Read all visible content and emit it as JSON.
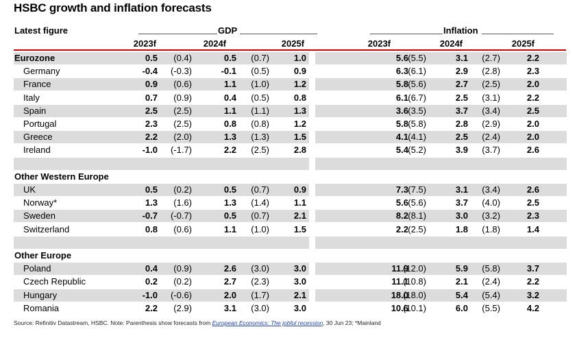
{
  "title": "HSBC growth and inflation forecasts",
  "top_label": "Latest figure",
  "groups": {
    "gdp": "GDP",
    "inflation": "Inflation"
  },
  "columns": [
    "2023f",
    "2024f",
    "2025f"
  ],
  "rows": [
    {
      "label": "Eurozone",
      "type": "header",
      "shaded": true,
      "v": [
        "0.5",
        "(0.4)",
        "0.5",
        "(0.7)",
        "1.0",
        "5.6",
        "(5.5)",
        "3.1",
        "(2.7)",
        "2.2"
      ]
    },
    {
      "label": "Germany",
      "type": "item",
      "shaded": false,
      "v": [
        "-0.4",
        "(-0.3)",
        "-0.1",
        "(0.5)",
        "0.9",
        "6.3",
        "(6.1)",
        "2.9",
        "(2.8)",
        "2.3"
      ]
    },
    {
      "label": "France",
      "type": "item",
      "shaded": true,
      "v": [
        "0.9",
        "(0.6)",
        "1.1",
        "(1.0)",
        "1.2",
        "5.8",
        "(5.6)",
        "2.7",
        "(2.5)",
        "2.0"
      ]
    },
    {
      "label": "Italy",
      "type": "item",
      "shaded": false,
      "v": [
        "0.7",
        "(0.9)",
        "0.4",
        "(0.5)",
        "0.8",
        "6.1",
        "(6.7)",
        "2.5",
        "(3.1)",
        "2.2"
      ]
    },
    {
      "label": "Spain",
      "type": "item",
      "shaded": true,
      "v": [
        "2.5",
        "(2.5)",
        "1.1",
        "(1.1)",
        "1.3",
        "3.6",
        "(3.5)",
        "3.7",
        "(3.4)",
        "2.5"
      ]
    },
    {
      "label": "Portugal",
      "type": "item",
      "shaded": false,
      "v": [
        "2.3",
        "(2.5)",
        "0.8",
        "(0.8)",
        "1.2",
        "5.8",
        "(5.8)",
        "2.8",
        "(2.9)",
        "2.0"
      ]
    },
    {
      "label": "Greece",
      "type": "item",
      "shaded": true,
      "v": [
        "2.2",
        "(2.0)",
        "1.3",
        "(1.3)",
        "1.5",
        "4.1",
        "(4.1)",
        "2.5",
        "(2.4)",
        "2.0"
      ]
    },
    {
      "label": "Ireland",
      "type": "item",
      "shaded": false,
      "v": [
        "-1.0",
        "(-1.7)",
        "2.2",
        "(2.5)",
        "2.8",
        "5.4",
        "(5.2)",
        "3.9",
        "(3.7)",
        "2.6"
      ]
    },
    {
      "label": "",
      "type": "spacer",
      "shaded": true,
      "v": []
    },
    {
      "label": "Other Western Europe",
      "type": "header",
      "shaded": false,
      "v": []
    },
    {
      "label": "UK",
      "type": "item",
      "shaded": true,
      "v": [
        "0.5",
        "(0.2)",
        "0.5",
        "(0.7)",
        "0.9",
        "7.3",
        "(7.5)",
        "3.1",
        "(3.4)",
        "2.6"
      ]
    },
    {
      "label": "Norway*",
      "type": "item",
      "shaded": false,
      "v": [
        "1.3",
        "(1.6)",
        "1.3",
        "(1.4)",
        "1.1",
        "5.6",
        "(5.6)",
        "3.7",
        "(4.0)",
        "2.5"
      ]
    },
    {
      "label": "Sweden",
      "type": "item",
      "shaded": true,
      "v": [
        "-0.7",
        "(-0.7)",
        "0.5",
        "(0.7)",
        "2.1",
        "8.2",
        "(8.1)",
        "3.0",
        "(3.2)",
        "2.3"
      ]
    },
    {
      "label": "Switzerland",
      "type": "item",
      "shaded": false,
      "v": [
        "0.8",
        "(0.6)",
        "1.1",
        "(1.0)",
        "1.5",
        "2.2",
        "(2.5)",
        "1.8",
        "(1.8)",
        "1.4"
      ]
    },
    {
      "label": "",
      "type": "spacer",
      "shaded": true,
      "v": []
    },
    {
      "label": "Other Europe",
      "type": "header",
      "shaded": false,
      "v": []
    },
    {
      "label": "Poland",
      "type": "item",
      "shaded": true,
      "v": [
        "0.4",
        "(0.9)",
        "2.6",
        "(3.0)",
        "3.0",
        "11.9",
        "(12.0)",
        "5.9",
        "(5.8)",
        "3.7"
      ]
    },
    {
      "label": "Czech Republic",
      "type": "item",
      "shaded": false,
      "v": [
        "0.2",
        "(0.2)",
        "2.7",
        "(2.3)",
        "3.0",
        "11.1",
        "(10.8)",
        "2.1",
        "(2.4)",
        "2.2"
      ]
    },
    {
      "label": "Hungary",
      "type": "item",
      "shaded": true,
      "v": [
        "-1.0",
        "(-0.6)",
        "2.0",
        "(1.7)",
        "2.1",
        "18.0",
        "(18.0)",
        "5.4",
        "(5.4)",
        "3.2"
      ]
    },
    {
      "label": "Romania",
      "type": "item",
      "shaded": false,
      "v": [
        "2.2",
        "(2.9)",
        "3.1",
        "(3.0)",
        "3.0",
        "10.6",
        "(10.1)",
        "6.0",
        "(5.5)",
        "4.2"
      ]
    }
  ],
  "source": {
    "prefix": "Source: Refinitiv Datastream, HSBC. Note: Parenthesis show forecasts from ",
    "link": "European Economics: The jobful recession",
    "suffix": ", 30 Jun 23; *Mainland"
  },
  "colors": {
    "accent_rule": "#d40000",
    "shade": "#dcdcdc",
    "link": "#1f3fbf"
  }
}
